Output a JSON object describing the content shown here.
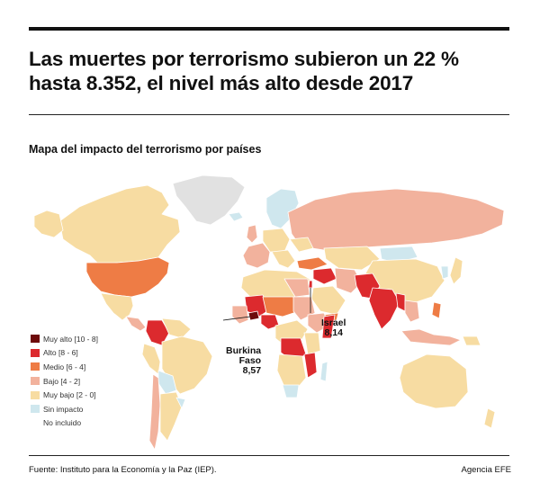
{
  "headline": {
    "line1": "Las muertes por terrorismo subieron un 22 %",
    "line2": "hasta 8.352, el nivel más alto desde 2017"
  },
  "subtitle": "Mapa del impacto del terrorismo por países",
  "legend": [
    {
      "label": "Muy alto [10 - 8]",
      "color": "#6e0b0b"
    },
    {
      "label": "Alto [8 - 6]",
      "color": "#dc2a2e"
    },
    {
      "label": "Medio [6 - 4]",
      "color": "#ee7c45"
    },
    {
      "label": "Bajo [4 - 2]",
      "color": "#f2b29d"
    },
    {
      "label": "Muy bajo [2 - 0]",
      "color": "#f7dca2"
    },
    {
      "label": "Sin impacto",
      "color": "#cfe7ee"
    },
    {
      "label": "No incluido",
      "color": "#e1e1e1"
    }
  ],
  "callouts": {
    "burkina": {
      "line1": "Burkina",
      "line2": "Faso",
      "value": "8,57"
    },
    "israel": {
      "line1": "Israel",
      "value": "8,14"
    }
  },
  "footer": {
    "source": "Fuente: Instituto para la Economía y la Paz (IEP).",
    "agency": "Agencia EFE"
  }
}
